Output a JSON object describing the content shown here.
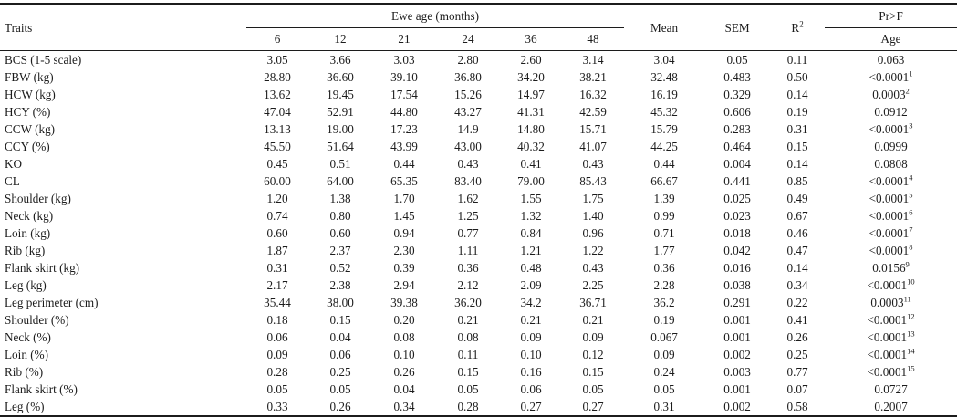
{
  "table": {
    "header": {
      "traits": "Traits",
      "ewe_age_group": "Ewe age (months)",
      "age_columns": [
        "6",
        "12",
        "21",
        "24",
        "36",
        "48"
      ],
      "mean": "Mean",
      "sem": "SEM",
      "r2_base": "R",
      "r2_sup": "2",
      "prf": "Pr>F",
      "prf_sub": "Age"
    },
    "rows": [
      {
        "trait": "BCS (1-5 scale)",
        "values": [
          "3.05",
          "3.66",
          "3.03",
          "2.80",
          "2.60",
          "3.14"
        ],
        "mean": "3.04",
        "sem": "0.05",
        "r2": "0.11",
        "pr": "0.063",
        "pr_sup": ""
      },
      {
        "trait": "FBW (kg)",
        "values": [
          "28.80",
          "36.60",
          "39.10",
          "36.80",
          "34.20",
          "38.21"
        ],
        "mean": "32.48",
        "sem": "0.483",
        "r2": "0.50",
        "pr": "<0.0001",
        "pr_sup": "1"
      },
      {
        "trait": "HCW (kg)",
        "values": [
          "13.62",
          "19.45",
          "17.54",
          "15.26",
          "14.97",
          "16.32"
        ],
        "mean": "16.19",
        "sem": "0.329",
        "r2": "0.14",
        "pr": "0.0003",
        "pr_sup": "2"
      },
      {
        "trait": "HCY (%)",
        "values": [
          "47.04",
          "52.91",
          "44.80",
          "43.27",
          "41.31",
          "42.59"
        ],
        "mean": "45.32",
        "sem": "0.606",
        "r2": "0.19",
        "pr": "0.0912",
        "pr_sup": ""
      },
      {
        "trait": "CCW (kg)",
        "values": [
          "13.13",
          "19.00",
          "17.23",
          "14.9",
          "14.80",
          "15.71"
        ],
        "mean": "15.79",
        "sem": "0.283",
        "r2": "0.31",
        "pr": "<0.0001",
        "pr_sup": "3"
      },
      {
        "trait": "CCY (%)",
        "values": [
          "45.50",
          "51.64",
          "43.99",
          "43.00",
          "40.32",
          "41.07"
        ],
        "mean": "44.25",
        "sem": "0.464",
        "r2": "0.15",
        "pr": "0.0999",
        "pr_sup": ""
      },
      {
        "trait": "KO",
        "values": [
          "0.45",
          "0.51",
          "0.44",
          "0.43",
          "0.41",
          "0.43"
        ],
        "mean": "0.44",
        "sem": "0.004",
        "r2": "0.14",
        "pr": "0.0808",
        "pr_sup": ""
      },
      {
        "trait": "CL",
        "values": [
          "60.00",
          "64.00",
          "65.35",
          "83.40",
          "79.00",
          "85.43"
        ],
        "mean": "66.67",
        "sem": "0.441",
        "r2": "0.85",
        "pr": "<0.0001",
        "pr_sup": "4"
      },
      {
        "trait": "Shoulder (kg)",
        "values": [
          "1.20",
          "1.38",
          "1.70",
          "1.62",
          "1.55",
          "1.75"
        ],
        "mean": "1.39",
        "sem": "0.025",
        "r2": "0.49",
        "pr": "<0.0001",
        "pr_sup": "5"
      },
      {
        "trait": "Neck (kg)",
        "values": [
          "0.74",
          "0.80",
          "1.45",
          "1.25",
          "1.32",
          "1.40"
        ],
        "mean": "0.99",
        "sem": "0.023",
        "r2": "0.67",
        "pr": "<0.0001",
        "pr_sup": "6"
      },
      {
        "trait": "Loin (kg)",
        "values": [
          "0.60",
          "0.60",
          "0.94",
          "0.77",
          "0.84",
          "0.96"
        ],
        "mean": "0.71",
        "sem": "0.018",
        "r2": "0.46",
        "pr": "<0.0001",
        "pr_sup": "7"
      },
      {
        "trait": "Rib (kg)",
        "values": [
          "1.87",
          "2.37",
          "2.30",
          "1.11",
          "1.21",
          "1.22"
        ],
        "mean": "1.77",
        "sem": "0.042",
        "r2": "0.47",
        "pr": "<0.0001",
        "pr_sup": "8"
      },
      {
        "trait": "Flank skirt (kg)",
        "values": [
          "0.31",
          "0.52",
          "0.39",
          "0.36",
          "0.48",
          "0.43"
        ],
        "mean": "0.36",
        "sem": "0.016",
        "r2": "0.14",
        "pr": "0.0156",
        "pr_sup": "9"
      },
      {
        "trait": "Leg (kg)",
        "values": [
          "2.17",
          "2.38",
          "2.94",
          "2.12",
          "2.09",
          "2.25"
        ],
        "mean": "2.28",
        "sem": "0.038",
        "r2": "0.34",
        "pr": "<0.0001",
        "pr_sup": "10"
      },
      {
        "trait": "Leg perimeter (cm)",
        "values": [
          "35.44",
          "38.00",
          "39.38",
          "36.20",
          "34.2",
          "36.71"
        ],
        "mean": "36.2",
        "sem": "0.291",
        "r2": "0.22",
        "pr": "0.0003",
        "pr_sup": "11"
      },
      {
        "trait": "Shoulder (%)",
        "values": [
          "0.18",
          "0.15",
          "0.20",
          "0.21",
          "0.21",
          "0.21"
        ],
        "mean": "0.19",
        "sem": "0.001",
        "r2": "0.41",
        "pr": "<0.0001",
        "pr_sup": "12"
      },
      {
        "trait": "Neck (%)",
        "values": [
          "0.06",
          "0.04",
          "0.08",
          "0.08",
          "0.09",
          "0.09"
        ],
        "mean": "0.067",
        "sem": "0.001",
        "r2": "0.26",
        "pr": "<0.0001",
        "pr_sup": "13"
      },
      {
        "trait": "Loin (%)",
        "values": [
          "0.09",
          "0.06",
          "0.10",
          "0.11",
          "0.10",
          "0.12"
        ],
        "mean": "0.09",
        "sem": "0.002",
        "r2": "0.25",
        "pr": "<0.0001",
        "pr_sup": "14"
      },
      {
        "trait": "Rib (%)",
        "values": [
          "0.28",
          "0.25",
          "0.26",
          "0.15",
          "0.16",
          "0.15"
        ],
        "mean": "0.24",
        "sem": "0.003",
        "r2": "0.77",
        "pr": "<0.0001",
        "pr_sup": "15"
      },
      {
        "trait": "Flank skirt (%)",
        "values": [
          "0.05",
          "0.05",
          "0.04",
          "0.05",
          "0.06",
          "0.05"
        ],
        "mean": "0.05",
        "sem": "0.001",
        "r2": "0.07",
        "pr": "0.0727",
        "pr_sup": ""
      },
      {
        "trait": "Leg (%)",
        "values": [
          "0.33",
          "0.26",
          "0.34",
          "0.28",
          "0.27",
          "0.27"
        ],
        "mean": "0.31",
        "sem": "0.002",
        "r2": "0.58",
        "pr": "0.2007",
        "pr_sup": ""
      }
    ]
  }
}
